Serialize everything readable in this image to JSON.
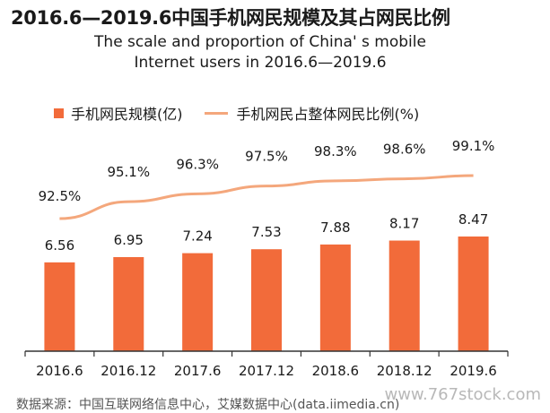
{
  "title": "2016.6—2019.6中国手机网民规模及其占网民比例",
  "subtitle_line1": "The scale and proportion of China' s mobile",
  "subtitle_line2": "Internet users  in 2016.6—2019.6",
  "legend": {
    "bar_label": "手机网民规模(亿)",
    "line_label": "手机网民占整体网民比例(%)"
  },
  "colors": {
    "bar": "#f26b3a",
    "line": "#f4a77c",
    "axis": "#333333"
  },
  "source": "数据来源：中国互联网络信息中心，艾媒数据中心(data.iimedia.cn)",
  "watermark": "www.767stock.com",
  "chart_data": {
    "type": "bar",
    "categories": [
      "2016.6",
      "2016.12",
      "2017.6",
      "2017.12",
      "2018.6",
      "2018.12",
      "2019.6"
    ],
    "series": [
      {
        "name": "手机网民规模(亿)",
        "type": "bar",
        "values": [
          6.56,
          6.95,
          7.24,
          7.53,
          7.88,
          8.17,
          8.47
        ],
        "labels": [
          "6.56",
          "6.95",
          "7.24",
          "7.53",
          "7.88",
          "8.17",
          "8.47"
        ]
      },
      {
        "name": "手机网民占整体网民比例(%)",
        "type": "line",
        "values": [
          92.5,
          95.1,
          96.3,
          97.5,
          98.3,
          98.6,
          99.1
        ],
        "labels": [
          "92.5%",
          "95.1%",
          "96.3%",
          "97.5%",
          "98.3%",
          "98.6%",
          "99.1%"
        ]
      }
    ],
    "legend_position": "top",
    "grid": false
  }
}
